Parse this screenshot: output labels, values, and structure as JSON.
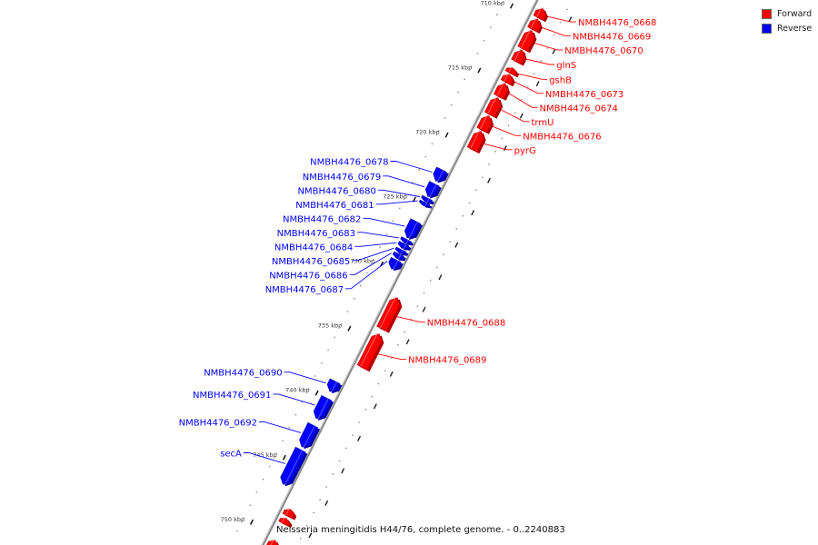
{
  "legend": [
    {
      "label": "Forward",
      "color": "#ff0000"
    },
    {
      "label": "Reverse",
      "color": "#0000ff"
    }
  ],
  "caption": "Neisseria meningitidis H44/76, complete genome. - 0..2240883",
  "axis_ticks": [
    {
      "kbp": 710,
      "label": "710 kbp"
    },
    {
      "kbp": 715,
      "label": "715 kbp"
    },
    {
      "kbp": 720,
      "label": "720 kbp"
    },
    {
      "kbp": 725,
      "label": "725 kbp"
    },
    {
      "kbp": 730,
      "label": "730 kbp"
    },
    {
      "kbp": 735,
      "label": "735 kbp"
    },
    {
      "kbp": 740,
      "label": "740 kbp"
    },
    {
      "kbp": 745,
      "label": "745 kbp"
    },
    {
      "kbp": 750,
      "label": "750 kbp"
    }
  ],
  "genes": [
    {
      "name": "NMBH4476_0668",
      "strand": "forward",
      "start_kbp": 709.2,
      "end_kbp": 709.9
    },
    {
      "name": "NMBH4476_0669",
      "strand": "forward",
      "start_kbp": 710.0,
      "end_kbp": 710.8
    },
    {
      "name": "NMBH4476_0670",
      "strand": "forward",
      "start_kbp": 710.9,
      "end_kbp": 712.3
    },
    {
      "name": "glnS",
      "strand": "forward",
      "start_kbp": 712.4,
      "end_kbp": 713.3
    },
    {
      "name": "gshB",
      "strand": "forward",
      "start_kbp": 713.8,
      "end_kbp": 714.2
    },
    {
      "name": "NMBH4476_0673",
      "strand": "forward",
      "start_kbp": 714.3,
      "end_kbp": 714.9
    },
    {
      "name": "NMBH4476_0674",
      "strand": "forward",
      "start_kbp": 715.0,
      "end_kbp": 716.0
    },
    {
      "name": "trmU",
      "strand": "forward",
      "start_kbp": 716.1,
      "end_kbp": 717.4
    },
    {
      "name": "NMBH4476_0676",
      "strand": "forward",
      "start_kbp": 717.5,
      "end_kbp": 718.6
    },
    {
      "name": "pyrG",
      "strand": "forward",
      "start_kbp": 718.7,
      "end_kbp": 720.1
    },
    {
      "name": "NMBH4476_0678",
      "strand": "reverse",
      "start_kbp": 722.3,
      "end_kbp": 723.2
    },
    {
      "name": "NMBH4476_0679",
      "strand": "reverse",
      "start_kbp": 723.4,
      "end_kbp": 724.4
    },
    {
      "name": "NMBH4476_0680",
      "strand": "reverse",
      "start_kbp": 724.5,
      "end_kbp": 724.8
    },
    {
      "name": "NMBH4476_0681",
      "strand": "reverse",
      "start_kbp": 724.85,
      "end_kbp": 725.1
    },
    {
      "name": "NMBH4476_0682",
      "strand": "reverse",
      "start_kbp": 726.3,
      "end_kbp": 727.6
    },
    {
      "name": "NMBH4476_0683",
      "strand": "reverse",
      "start_kbp": 727.7,
      "end_kbp": 728.0
    },
    {
      "name": "NMBH4476_0684",
      "strand": "reverse",
      "start_kbp": 728.05,
      "end_kbp": 728.4
    },
    {
      "name": "NMBH4476_0685",
      "strand": "reverse",
      "start_kbp": 728.5,
      "end_kbp": 728.8
    },
    {
      "name": "NMBH4476_0686",
      "strand": "reverse",
      "start_kbp": 728.85,
      "end_kbp": 729.2
    },
    {
      "name": "NMBH4476_0687",
      "strand": "reverse",
      "start_kbp": 729.3,
      "end_kbp": 730.0
    },
    {
      "name": "NMBH4476_0688",
      "strand": "forward",
      "start_kbp": 731.6,
      "end_kbp": 734.0
    },
    {
      "name": "NMBH4476_0689",
      "strand": "forward",
      "start_kbp": 734.4,
      "end_kbp": 737.0
    },
    {
      "name": "NMBH4476_0690",
      "strand": "reverse",
      "start_kbp": 738.7,
      "end_kbp": 739.5
    },
    {
      "name": "NMBH4476_0691",
      "strand": "reverse",
      "start_kbp": 740.0,
      "end_kbp": 741.6
    },
    {
      "name": "NMBH4476_0692",
      "strand": "reverse",
      "start_kbp": 742.1,
      "end_kbp": 743.8
    },
    {
      "name": "secA",
      "strand": "reverse",
      "start_kbp": 744.0,
      "end_kbp": 746.7
    },
    {
      "name": "",
      "strand": "forward",
      "start_kbp": 748.0,
      "end_kbp": 748.5
    },
    {
      "name": "",
      "strand": "forward",
      "start_kbp": 748.7,
      "end_kbp": 749.1
    },
    {
      "name": "",
      "strand": "forward",
      "start_kbp": 750.4,
      "end_kbp": 751.0
    }
  ]
}
